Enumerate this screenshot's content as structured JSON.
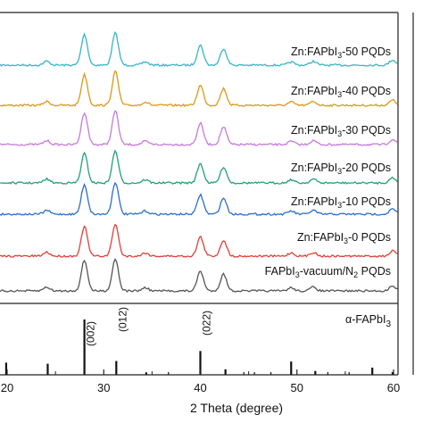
{
  "chart_data": {
    "type": "line",
    "xlabel": "2 Theta (degree)",
    "xlim": [
      20,
      60
    ],
    "x_ticks": [
      "20",
      "30",
      "40",
      "50",
      "60"
    ],
    "grid": false,
    "colors": {
      "axis": "#222222",
      "reference": "#111111"
    },
    "series": [
      {
        "name": "Zn:FAPbI3-50 PQDs",
        "label_main": "Zn:FAPbI",
        "label_sub": "3",
        "label_tail": "-50 PQDs",
        "color": "#35b6c4",
        "peaks": [
          {
            "x": 24.1,
            "h": 0.12
          },
          {
            "x": 28.0,
            "h": 0.95
          },
          {
            "x": 31.2,
            "h": 1.0
          },
          {
            "x": 34.3,
            "h": 0.1
          },
          {
            "x": 40.0,
            "h": 0.62
          },
          {
            "x": 42.4,
            "h": 0.52
          },
          {
            "x": 49.4,
            "h": 0.1
          },
          {
            "x": 51.7,
            "h": 0.12
          },
          {
            "x": 59.9,
            "h": 0.16
          }
        ]
      },
      {
        "name": "Zn:FAPbI3-40 PQDs",
        "label_main": "Zn:FAPbI",
        "label_sub": "3",
        "label_tail": "-40 PQDs",
        "color": "#d99a18",
        "peaks": [
          {
            "x": 24.1,
            "h": 0.12
          },
          {
            "x": 28.0,
            "h": 0.95
          },
          {
            "x": 31.2,
            "h": 1.05
          },
          {
            "x": 34.3,
            "h": 0.1
          },
          {
            "x": 40.0,
            "h": 0.62
          },
          {
            "x": 42.4,
            "h": 0.52
          },
          {
            "x": 49.4,
            "h": 0.1
          },
          {
            "x": 51.7,
            "h": 0.12
          },
          {
            "x": 59.9,
            "h": 0.16
          }
        ]
      },
      {
        "name": "Zn:FAPbI3-30 PQDs",
        "label_main": "Zn:FAPbI",
        "label_sub": "3",
        "label_tail": "-30 PQDs",
        "color": "#c57ad8",
        "peaks": [
          {
            "x": 24.1,
            "h": 0.12
          },
          {
            "x": 28.0,
            "h": 1.0
          },
          {
            "x": 31.2,
            "h": 1.05
          },
          {
            "x": 34.3,
            "h": 0.1
          },
          {
            "x": 40.0,
            "h": 0.66
          },
          {
            "x": 42.4,
            "h": 0.55
          },
          {
            "x": 49.4,
            "h": 0.1
          },
          {
            "x": 51.7,
            "h": 0.12
          },
          {
            "x": 59.9,
            "h": 0.16
          }
        ]
      },
      {
        "name": "Zn:FAPbI3-20 PQDs",
        "label_main": "Zn:FAPbI",
        "label_sub": "3",
        "label_tail": "-20 PQDs",
        "color": "#22a07a",
        "peaks": [
          {
            "x": 24.1,
            "h": 0.12
          },
          {
            "x": 28.0,
            "h": 0.92
          },
          {
            "x": 31.2,
            "h": 1.0
          },
          {
            "x": 34.3,
            "h": 0.1
          },
          {
            "x": 40.0,
            "h": 0.6
          },
          {
            "x": 42.4,
            "h": 0.5
          },
          {
            "x": 49.4,
            "h": 0.1
          },
          {
            "x": 51.7,
            "h": 0.12
          },
          {
            "x": 59.9,
            "h": 0.16
          }
        ]
      },
      {
        "name": "Zn:FAPbI3-10 PQDs",
        "label_main": "Zn:FAPbI",
        "label_sub": "3",
        "label_tail": "-10 PQDs",
        "color": "#2a6fc9",
        "peaks": [
          {
            "x": 24.1,
            "h": 0.12
          },
          {
            "x": 28.0,
            "h": 0.92
          },
          {
            "x": 31.2,
            "h": 1.0
          },
          {
            "x": 34.3,
            "h": 0.1
          },
          {
            "x": 40.0,
            "h": 0.6
          },
          {
            "x": 42.4,
            "h": 0.5
          },
          {
            "x": 49.4,
            "h": 0.1
          },
          {
            "x": 51.7,
            "h": 0.12
          },
          {
            "x": 59.9,
            "h": 0.16
          }
        ]
      },
      {
        "name": "Zn:FAPbI3-0 PQDs",
        "label_main": "Zn:FAPbI",
        "label_sub": "3",
        "label_tail": "-0 PQDs",
        "color": "#e0403a",
        "peaks": [
          {
            "x": 24.1,
            "h": 0.12
          },
          {
            "x": 28.0,
            "h": 0.92
          },
          {
            "x": 31.2,
            "h": 1.0
          },
          {
            "x": 34.3,
            "h": 0.1
          },
          {
            "x": 40.0,
            "h": 0.6
          },
          {
            "x": 42.4,
            "h": 0.5
          },
          {
            "x": 49.4,
            "h": 0.1
          },
          {
            "x": 51.7,
            "h": 0.12
          },
          {
            "x": 59.9,
            "h": 0.16
          }
        ]
      },
      {
        "name": "FAPbI3-vacuum/N2 PQDs",
        "label_main": "FAPbI",
        "label_sub": "3",
        "label_tail": "-vacuum/N",
        "label_sub2": "2",
        "label_tail2": " PQDs",
        "color": "#555555",
        "peaks": [
          {
            "x": 24.1,
            "h": 0.12
          },
          {
            "x": 28.0,
            "h": 0.95
          },
          {
            "x": 31.2,
            "h": 1.0
          },
          {
            "x": 34.3,
            "h": 0.1
          },
          {
            "x": 40.0,
            "h": 0.62
          },
          {
            "x": 42.4,
            "h": 0.52
          },
          {
            "x": 49.4,
            "h": 0.1
          },
          {
            "x": 51.7,
            "h": 0.12
          },
          {
            "x": 59.9,
            "h": 0.16
          }
        ]
      }
    ],
    "reference": {
      "name": "α-FAPbI3",
      "label_main": "α-FAPbI",
      "label_sub": "3",
      "lines": [
        {
          "x": 19.9,
          "h": 0.22
        },
        {
          "x": 24.2,
          "h": 0.2
        },
        {
          "x": 28.0,
          "h": 1.0
        },
        {
          "x": 31.3,
          "h": 0.25
        },
        {
          "x": 34.4,
          "h": 0.04
        },
        {
          "x": 40.0,
          "h": 0.43
        },
        {
          "x": 42.6,
          "h": 0.1
        },
        {
          "x": 49.4,
          "h": 0.24
        },
        {
          "x": 51.9,
          "h": 0.07
        },
        {
          "x": 57.8,
          "h": 0.13
        },
        {
          "x": 59.9,
          "h": 0.05
        }
      ],
      "peak_labels": [
        {
          "x": 28.0,
          "text": "(002)"
        },
        {
          "x": 31.3,
          "text": "(012)"
        },
        {
          "x": 40.0,
          "text": "(022)"
        }
      ]
    }
  }
}
